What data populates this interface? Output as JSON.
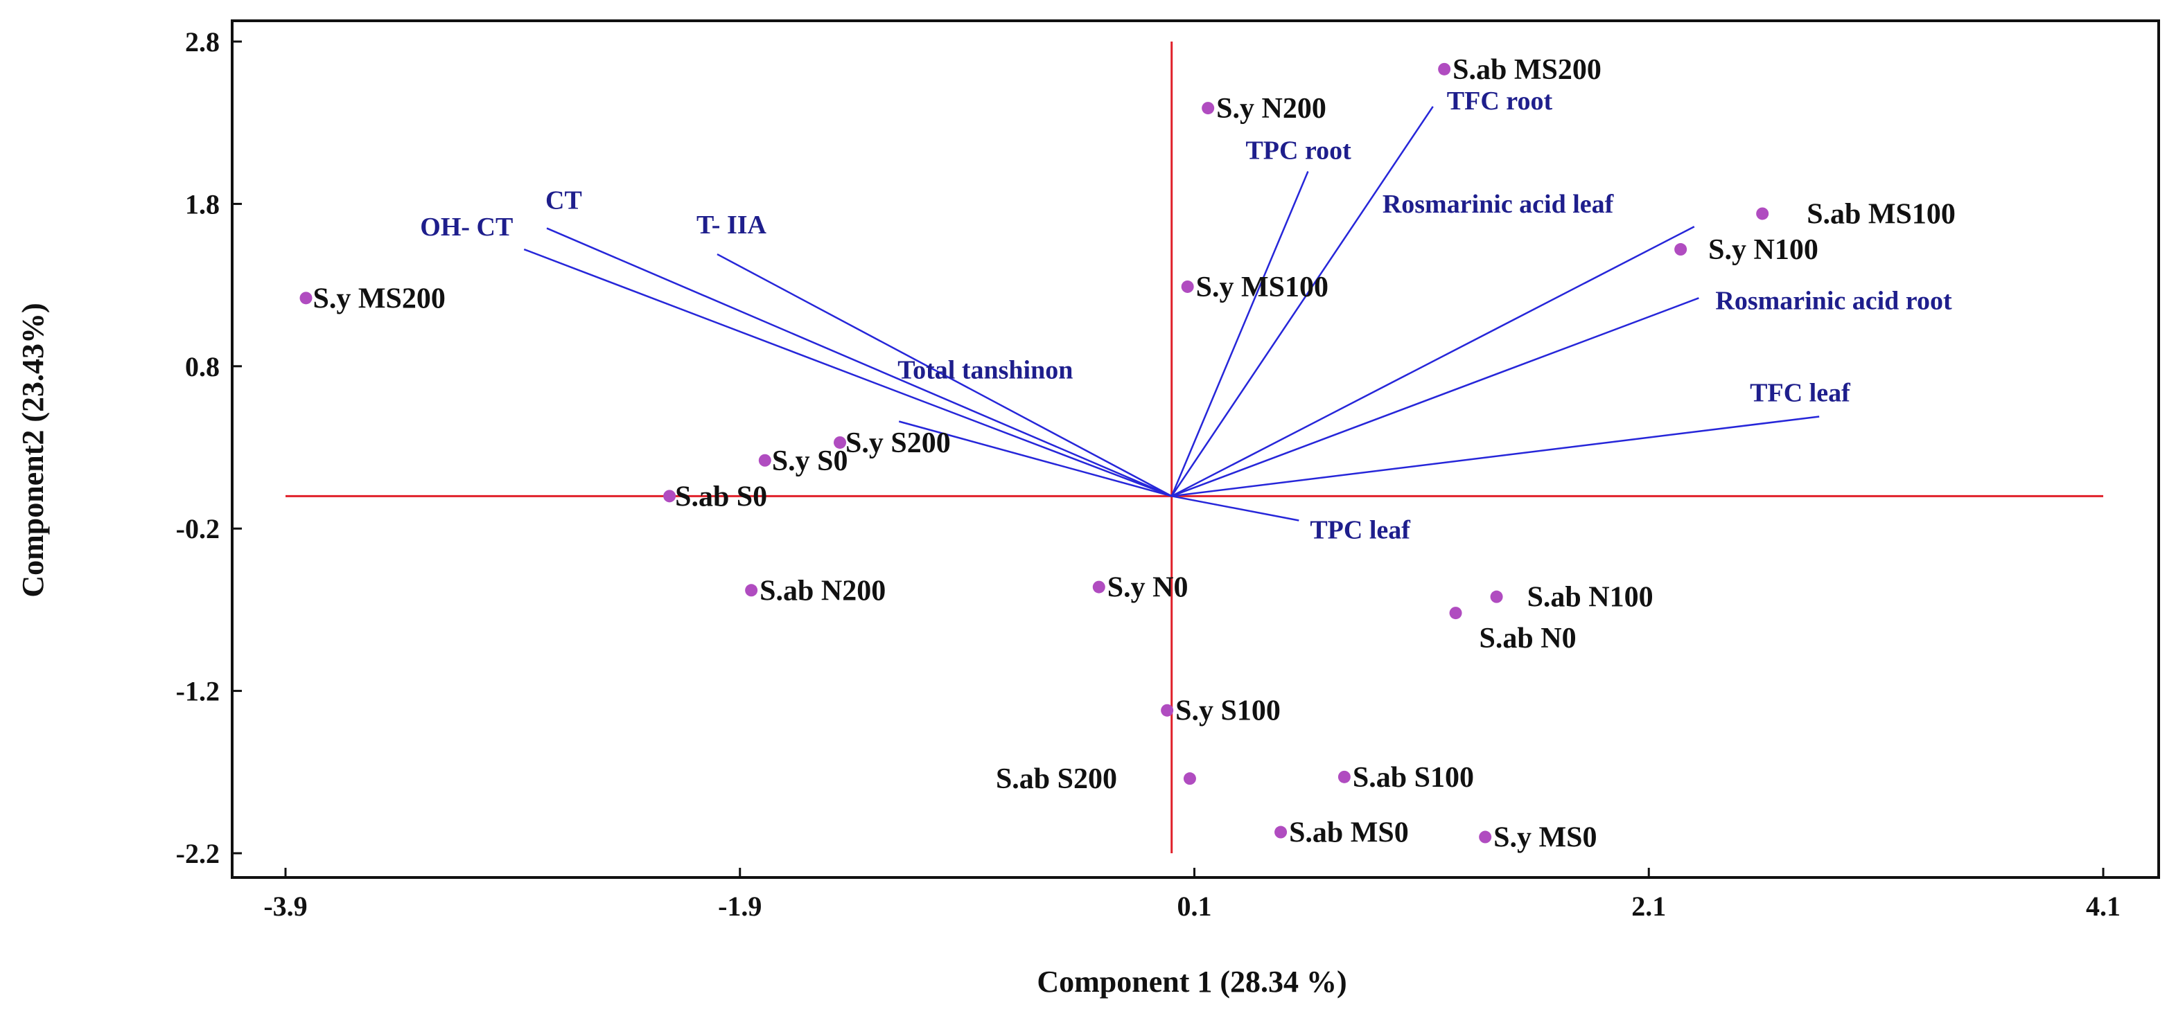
{
  "chart_data": {
    "type": "scatter",
    "xlabel": "Component 1 (28.34 %)",
    "ylabel": "Component2 (23.43%)",
    "xlim": [
      -3.9,
      4.1
    ],
    "ylim": [
      -2.2,
      2.8
    ],
    "xticks": [
      {
        "value": -3.9,
        "label": "-3.9"
      },
      {
        "value": -1.9,
        "label": "-1.9"
      },
      {
        "value": 0.1,
        "label": "0.1"
      },
      {
        "value": 2.1,
        "label": "2.1"
      },
      {
        "value": 4.1,
        "label": "4.1"
      }
    ],
    "yticks": [
      {
        "value": 2.8,
        "label": "2.8"
      },
      {
        "value": 1.8,
        "label": "1.8"
      },
      {
        "value": 0.8,
        "label": "0.8"
      },
      {
        "value": -0.2,
        "label": "-0.2"
      },
      {
        "value": -1.2,
        "label": "-1.2"
      },
      {
        "value": -2.2,
        "label": "-2.2"
      }
    ],
    "grid": false,
    "origin_lines": {
      "color": "#e0202a"
    },
    "vector_color": "#2626d9",
    "vector_label_color": "#1e1e8c",
    "point_color": "#b04cc0",
    "points": [
      {
        "label": "S.ab MS200",
        "x": 1.2,
        "y": 2.63
      },
      {
        "label": "S.y N200",
        "x": 0.16,
        "y": 2.39
      },
      {
        "label": "S.ab MS100",
        "x": 2.6,
        "y": 1.74
      },
      {
        "label": "S.y N100",
        "x": 2.24,
        "y": 1.52
      },
      {
        "label": "S.y MS200",
        "x": -3.81,
        "y": 1.22
      },
      {
        "label": "S.y MS100",
        "x": 0.07,
        "y": 1.29
      },
      {
        "label": "S.y S200",
        "x": -1.46,
        "y": 0.33
      },
      {
        "label": "S.y S0",
        "x": -1.79,
        "y": 0.22
      },
      {
        "label": "S.ab S0",
        "x": -2.21,
        "y": 0.0
      },
      {
        "label": "S.ab N200",
        "x": -1.85,
        "y": -0.58
      },
      {
        "label": "S.y N0",
        "x": -0.32,
        "y": -0.56
      },
      {
        "label": "S.ab N100",
        "x": 1.43,
        "y": -0.62
      },
      {
        "label": "S.ab N0",
        "x": 1.25,
        "y": -0.72
      },
      {
        "label": "S.y S100",
        "x": -0.02,
        "y": -1.32
      },
      {
        "label": "S.ab S200",
        "x": 0.08,
        "y": -1.74
      },
      {
        "label": "S.ab S100",
        "x": 0.76,
        "y": -1.73
      },
      {
        "label": "S.ab MS0",
        "x": 0.48,
        "y": -2.07
      },
      {
        "label": "S.y MS0",
        "x": 1.38,
        "y": -2.1
      }
    ],
    "vectors": [
      {
        "label": "CT",
        "x": -2.75,
        "y": 1.65
      },
      {
        "label": "OH- CT",
        "x": -2.85,
        "y": 1.52
      },
      {
        "label": "T- IIA",
        "x": -2.0,
        "y": 1.49
      },
      {
        "label": "Total tanshinon",
        "x": -1.2,
        "y": 0.46
      },
      {
        "label": "TPC root",
        "x": 0.6,
        "y": 2.0
      },
      {
        "label": "TFC root",
        "x": 1.15,
        "y": 2.4
      },
      {
        "label": "Rosmarinic acid leaf",
        "x": 2.3,
        "y": 1.66
      },
      {
        "label": "Rosmarinic acid root",
        "x": 2.32,
        "y": 1.22
      },
      {
        "label": "TFC leaf",
        "x": 2.85,
        "y": 0.49
      },
      {
        "label": "TPC leaf",
        "x": 0.56,
        "y": -0.15
      }
    ]
  }
}
